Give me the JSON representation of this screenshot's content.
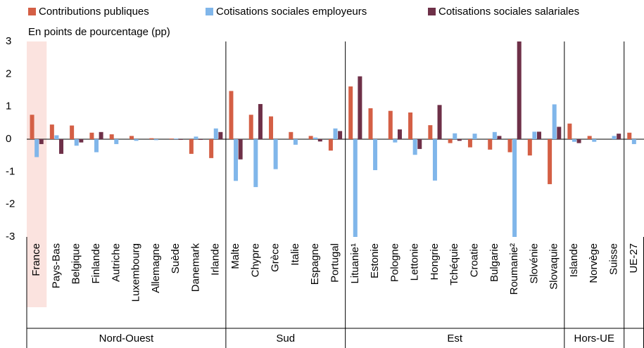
{
  "chart_data": {
    "type": "bar",
    "subtitle": "En points de pourcentage (pp)",
    "groups": [
      {
        "name": "Nord-Ouest",
        "categories": [
          "France",
          "Pays-Bas",
          "Belgique",
          "Finlande",
          "Autriche",
          "Luxembourg",
          "Allemagne",
          "Suède",
          "Danemark",
          "Irlande"
        ]
      },
      {
        "name": "Sud",
        "categories": [
          "Malte",
          "Chypre",
          "Grèce",
          "Italie",
          "Espagne",
          "Portugal"
        ]
      },
      {
        "name": "Est",
        "categories": [
          "Lituanie¹",
          "Estonie",
          "Pologne",
          "Lettonie",
          "Hongrie",
          "Tchéquie",
          "Croatie",
          "Bulgarie",
          "Roumanie²",
          "Slovénie",
          "Slovaquie"
        ]
      },
      {
        "name": "Hors-UE",
        "categories": [
          "Islande",
          "Norvège",
          "Suisse"
        ]
      },
      {
        "name": null,
        "categories": [
          "UE-27"
        ]
      }
    ],
    "series": [
      {
        "name": "Contributions publiques",
        "color": "#d45f45",
        "values": [
          0.75,
          0.45,
          0.42,
          0.2,
          0.15,
          0.1,
          0.03,
          0.02,
          -0.45,
          -0.58,
          1.48,
          0.75,
          0.7,
          0.22,
          0.1,
          -0.35,
          1.62,
          0.95,
          0.87,
          0.82,
          0.43,
          -0.12,
          -0.25,
          -0.32,
          -0.4,
          -0.5,
          -1.38,
          0.48,
          0.1,
          0,
          0.2
        ]
      },
      {
        "name": "Cotisations sociales employeurs",
        "color": "#80b6ea",
        "values": [
          -0.55,
          0.12,
          -0.2,
          -0.4,
          -0.15,
          -0.05,
          -0.03,
          0.02,
          0.08,
          0.33,
          -1.28,
          -1.47,
          -0.92,
          -0.17,
          0.05,
          0.33,
          -3,
          -0.95,
          -0.1,
          -0.48,
          -1.27,
          0.18,
          0.17,
          0.22,
          -3,
          0.23,
          1.07,
          -0.08,
          -0.08,
          0.1,
          -0.15
        ]
      },
      {
        "name": "Cotisations sociales salariales",
        "color": "#6e3048",
        "values": [
          -0.15,
          -0.45,
          -0.1,
          0.22,
          0,
          0,
          0,
          -0.02,
          -0.02,
          0.22,
          -0.62,
          1.08,
          0,
          0,
          -0.07,
          0.25,
          1.93,
          0,
          0.3,
          -0.3,
          1.05,
          -0.05,
          0,
          0.1,
          3,
          0.23,
          0.38,
          -0.12,
          0,
          0.17,
          0
        ]
      }
    ],
    "ylim": [
      -3,
      3
    ],
    "yticks": [
      -3,
      -2,
      -1,
      0,
      1,
      2,
      3
    ]
  }
}
